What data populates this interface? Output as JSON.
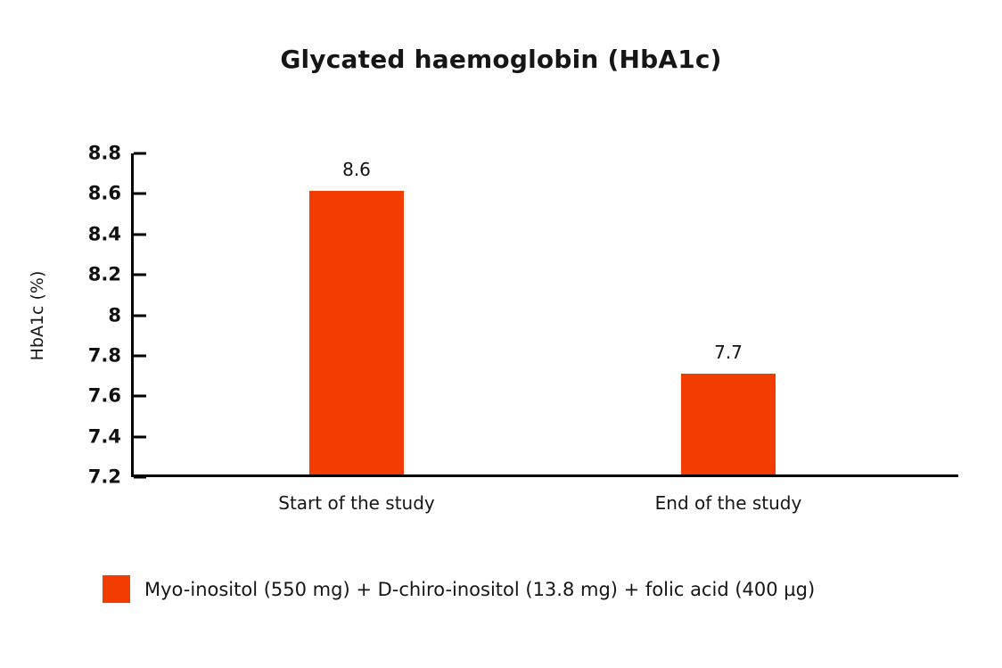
{
  "chart_data": {
    "type": "bar",
    "title": "Glycated haemoglobin (HbA1c)",
    "xlabel": "",
    "ylabel": "HbA1c (%)",
    "categories": [
      "Start of the study",
      "End of the study"
    ],
    "values": [
      8.6,
      7.7
    ],
    "value_labels": [
      "8.6",
      "7.7"
    ],
    "ylim": [
      7.2,
      8.8
    ],
    "ytick_step": 0.2,
    "yticks": [
      "8.8",
      "8.6",
      "8.4",
      "8.2",
      "8",
      "7.8",
      "7.6",
      "7.4",
      "7.2"
    ],
    "grid": false,
    "bar_color": "#F23C00",
    "legend": {
      "position": "bottom",
      "entries": [
        {
          "label": "Myo-inositol (550 mg) + D-chiro-inositol (13.8 mg) + folic acid (400 µg)",
          "color": "#F23C00"
        }
      ]
    }
  }
}
